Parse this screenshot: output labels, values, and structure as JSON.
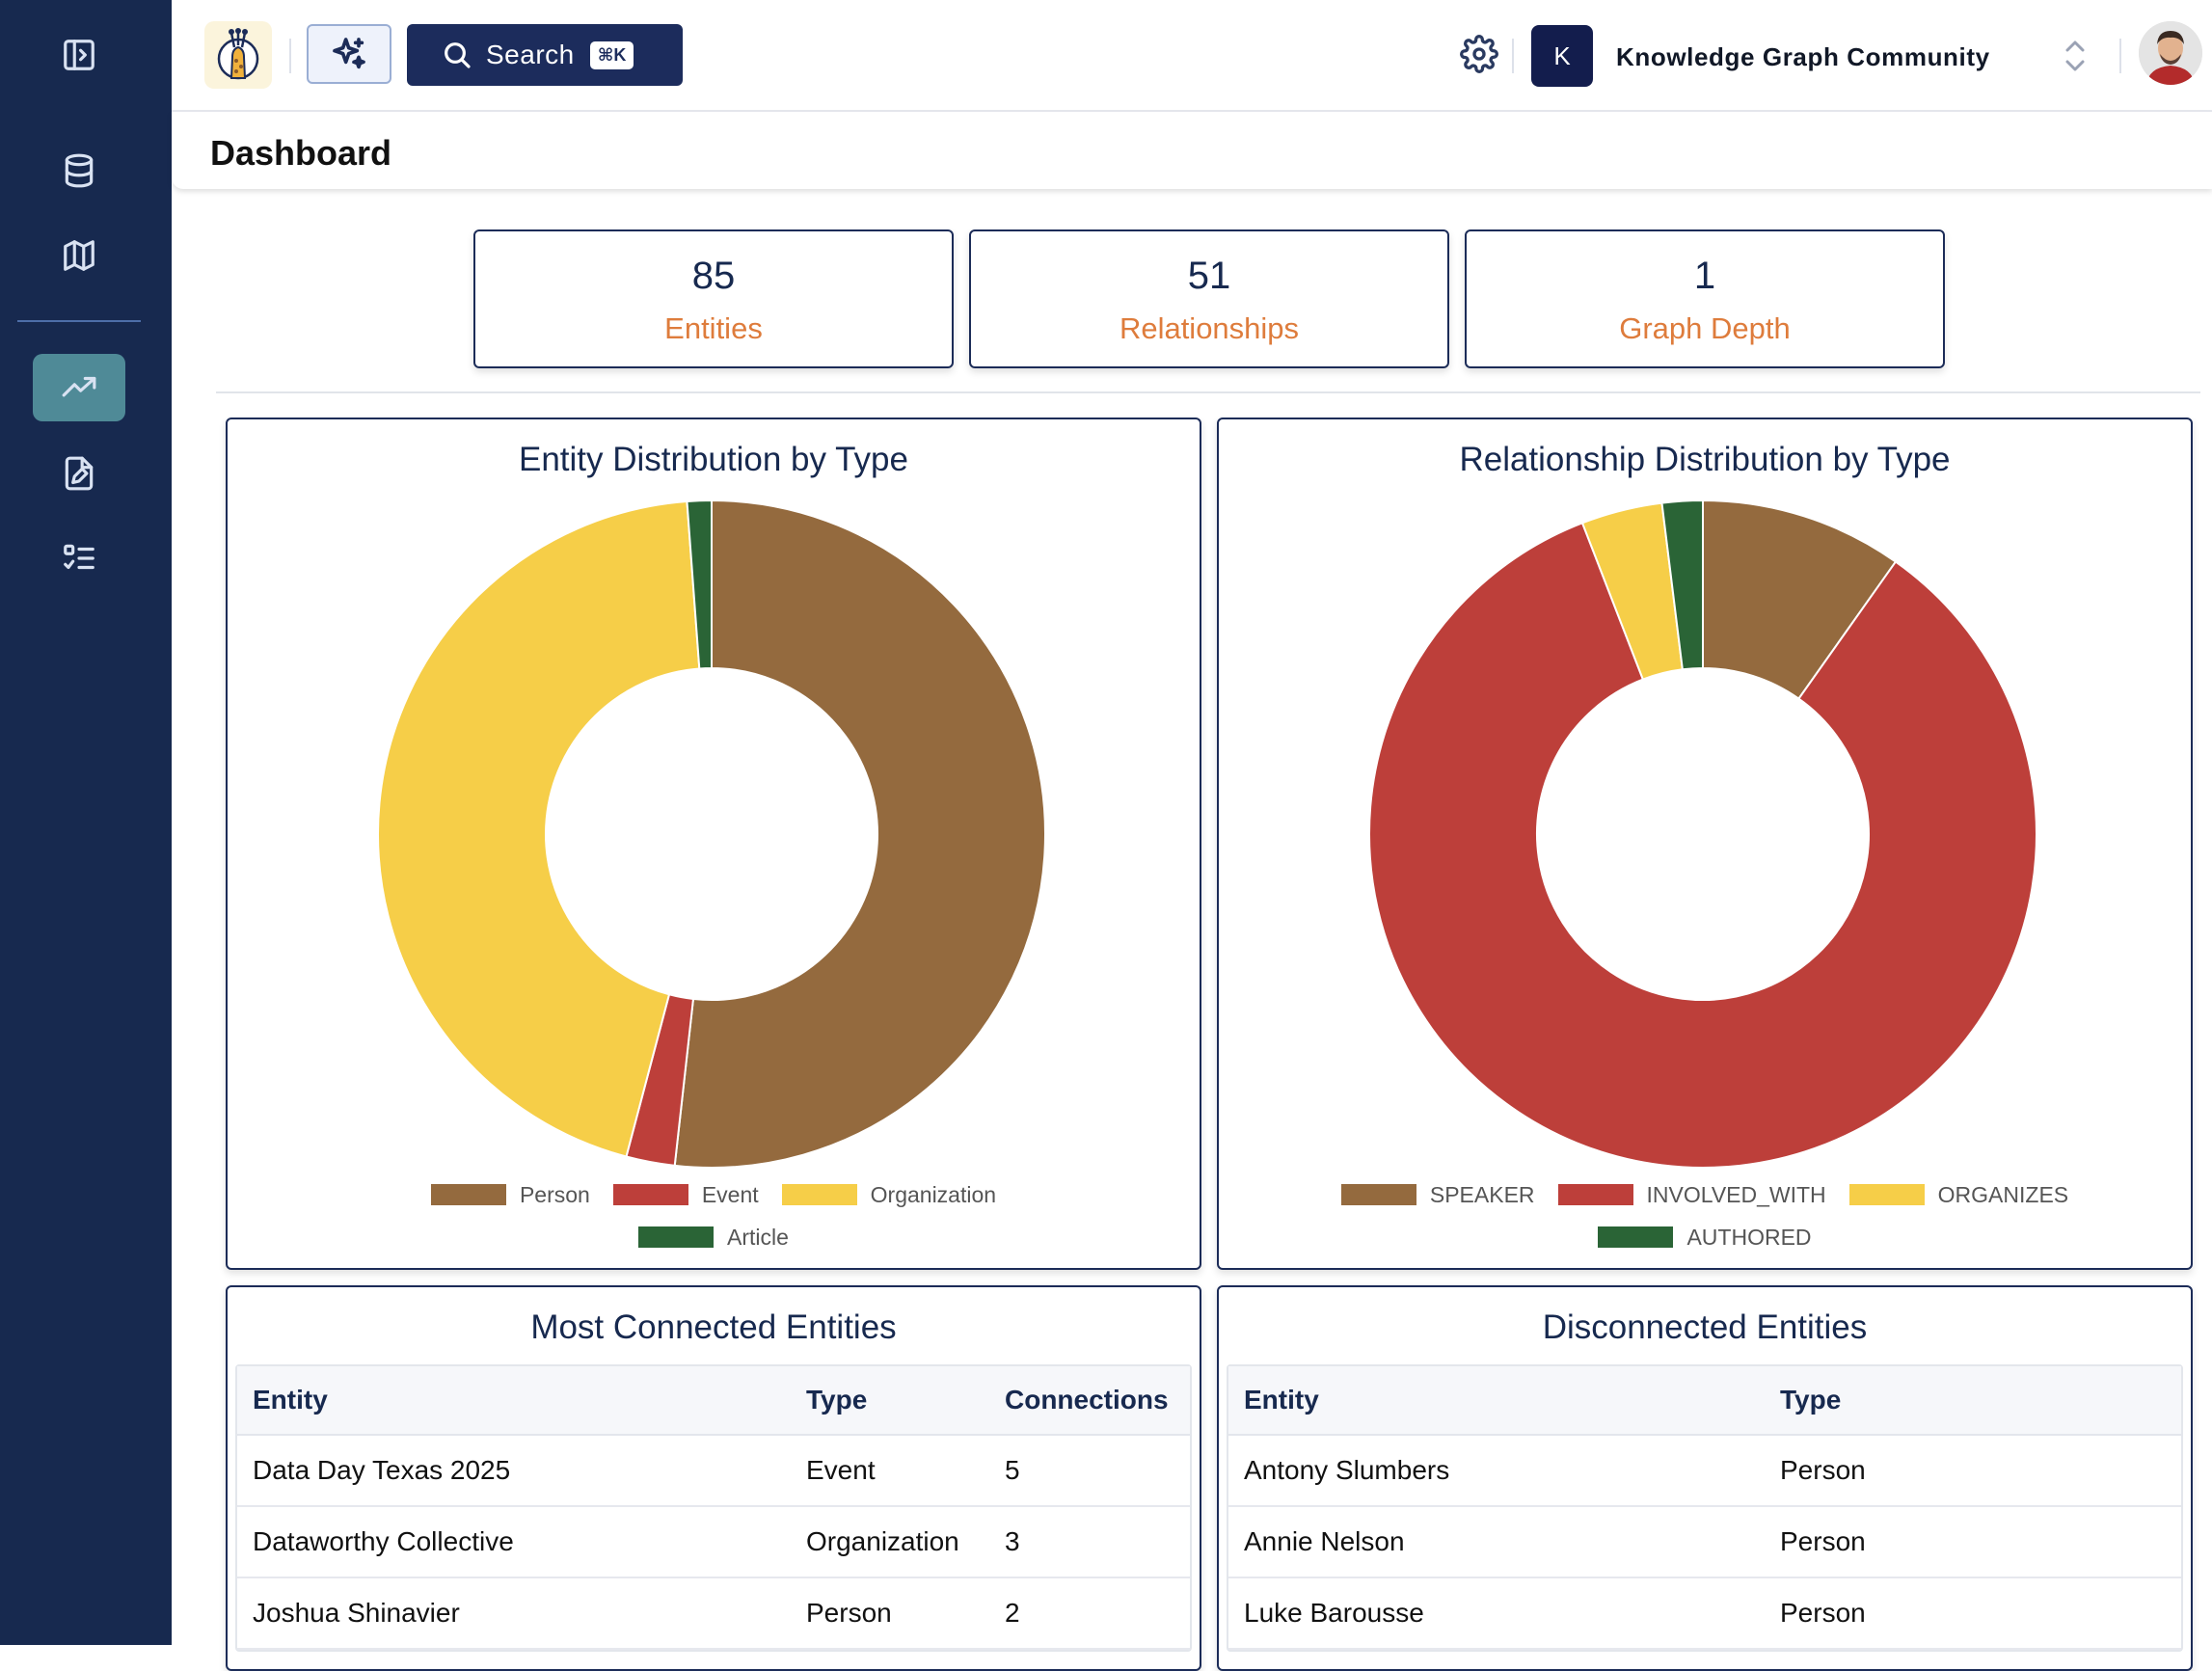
{
  "header": {
    "search_label": "Search",
    "search_shortcut": "⌘K",
    "org_initial": "K",
    "org_name": "Knowledge Graph Community"
  },
  "page": {
    "title": "Dashboard"
  },
  "stats": [
    {
      "value": "85",
      "label": "Entities"
    },
    {
      "value": "51",
      "label": "Relationships"
    },
    {
      "value": "1",
      "label": "Graph Depth"
    }
  ],
  "colors": {
    "person": "#946a3e",
    "event": "#bd3f3a",
    "organization": "#f6ce48",
    "article": "#2a6436",
    "accent": "#de7c3c",
    "navy": "#17294f"
  },
  "chart_data": [
    {
      "type": "pie",
      "title": "Entity Distribution by Type",
      "categories": [
        "Person",
        "Event",
        "Organization",
        "Article"
      ],
      "values": [
        44,
        2,
        38,
        1
      ],
      "colors": [
        "#946a3e",
        "#bd3f3a",
        "#f6ce48",
        "#2a6436"
      ],
      "legend": "bottom"
    },
    {
      "type": "pie",
      "title": "Relationship Distribution by Type",
      "categories": [
        "SPEAKER",
        "INVOLVED_WITH",
        "ORGANIZES",
        "AUTHORED"
      ],
      "values": [
        5,
        43,
        2,
        1
      ],
      "colors": [
        "#946a3e",
        "#bd3f3a",
        "#f6ce48",
        "#2a6436"
      ],
      "legend": "bottom"
    }
  ],
  "most_connected": {
    "title": "Most Connected Entities",
    "columns": [
      "Entity",
      "Type",
      "Connections"
    ],
    "rows": [
      [
        "Data Day Texas 2025",
        "Event",
        "5"
      ],
      [
        "Dataworthy Collective",
        "Organization",
        "3"
      ],
      [
        "Joshua Shinavier",
        "Person",
        "2"
      ]
    ]
  },
  "disconnected": {
    "title": "Disconnected Entities",
    "columns": [
      "Entity",
      "Type"
    ],
    "rows": [
      [
        "Antony Slumbers",
        "Person"
      ],
      [
        "Annie Nelson",
        "Person"
      ],
      [
        "Luke Barousse",
        "Person"
      ]
    ]
  }
}
